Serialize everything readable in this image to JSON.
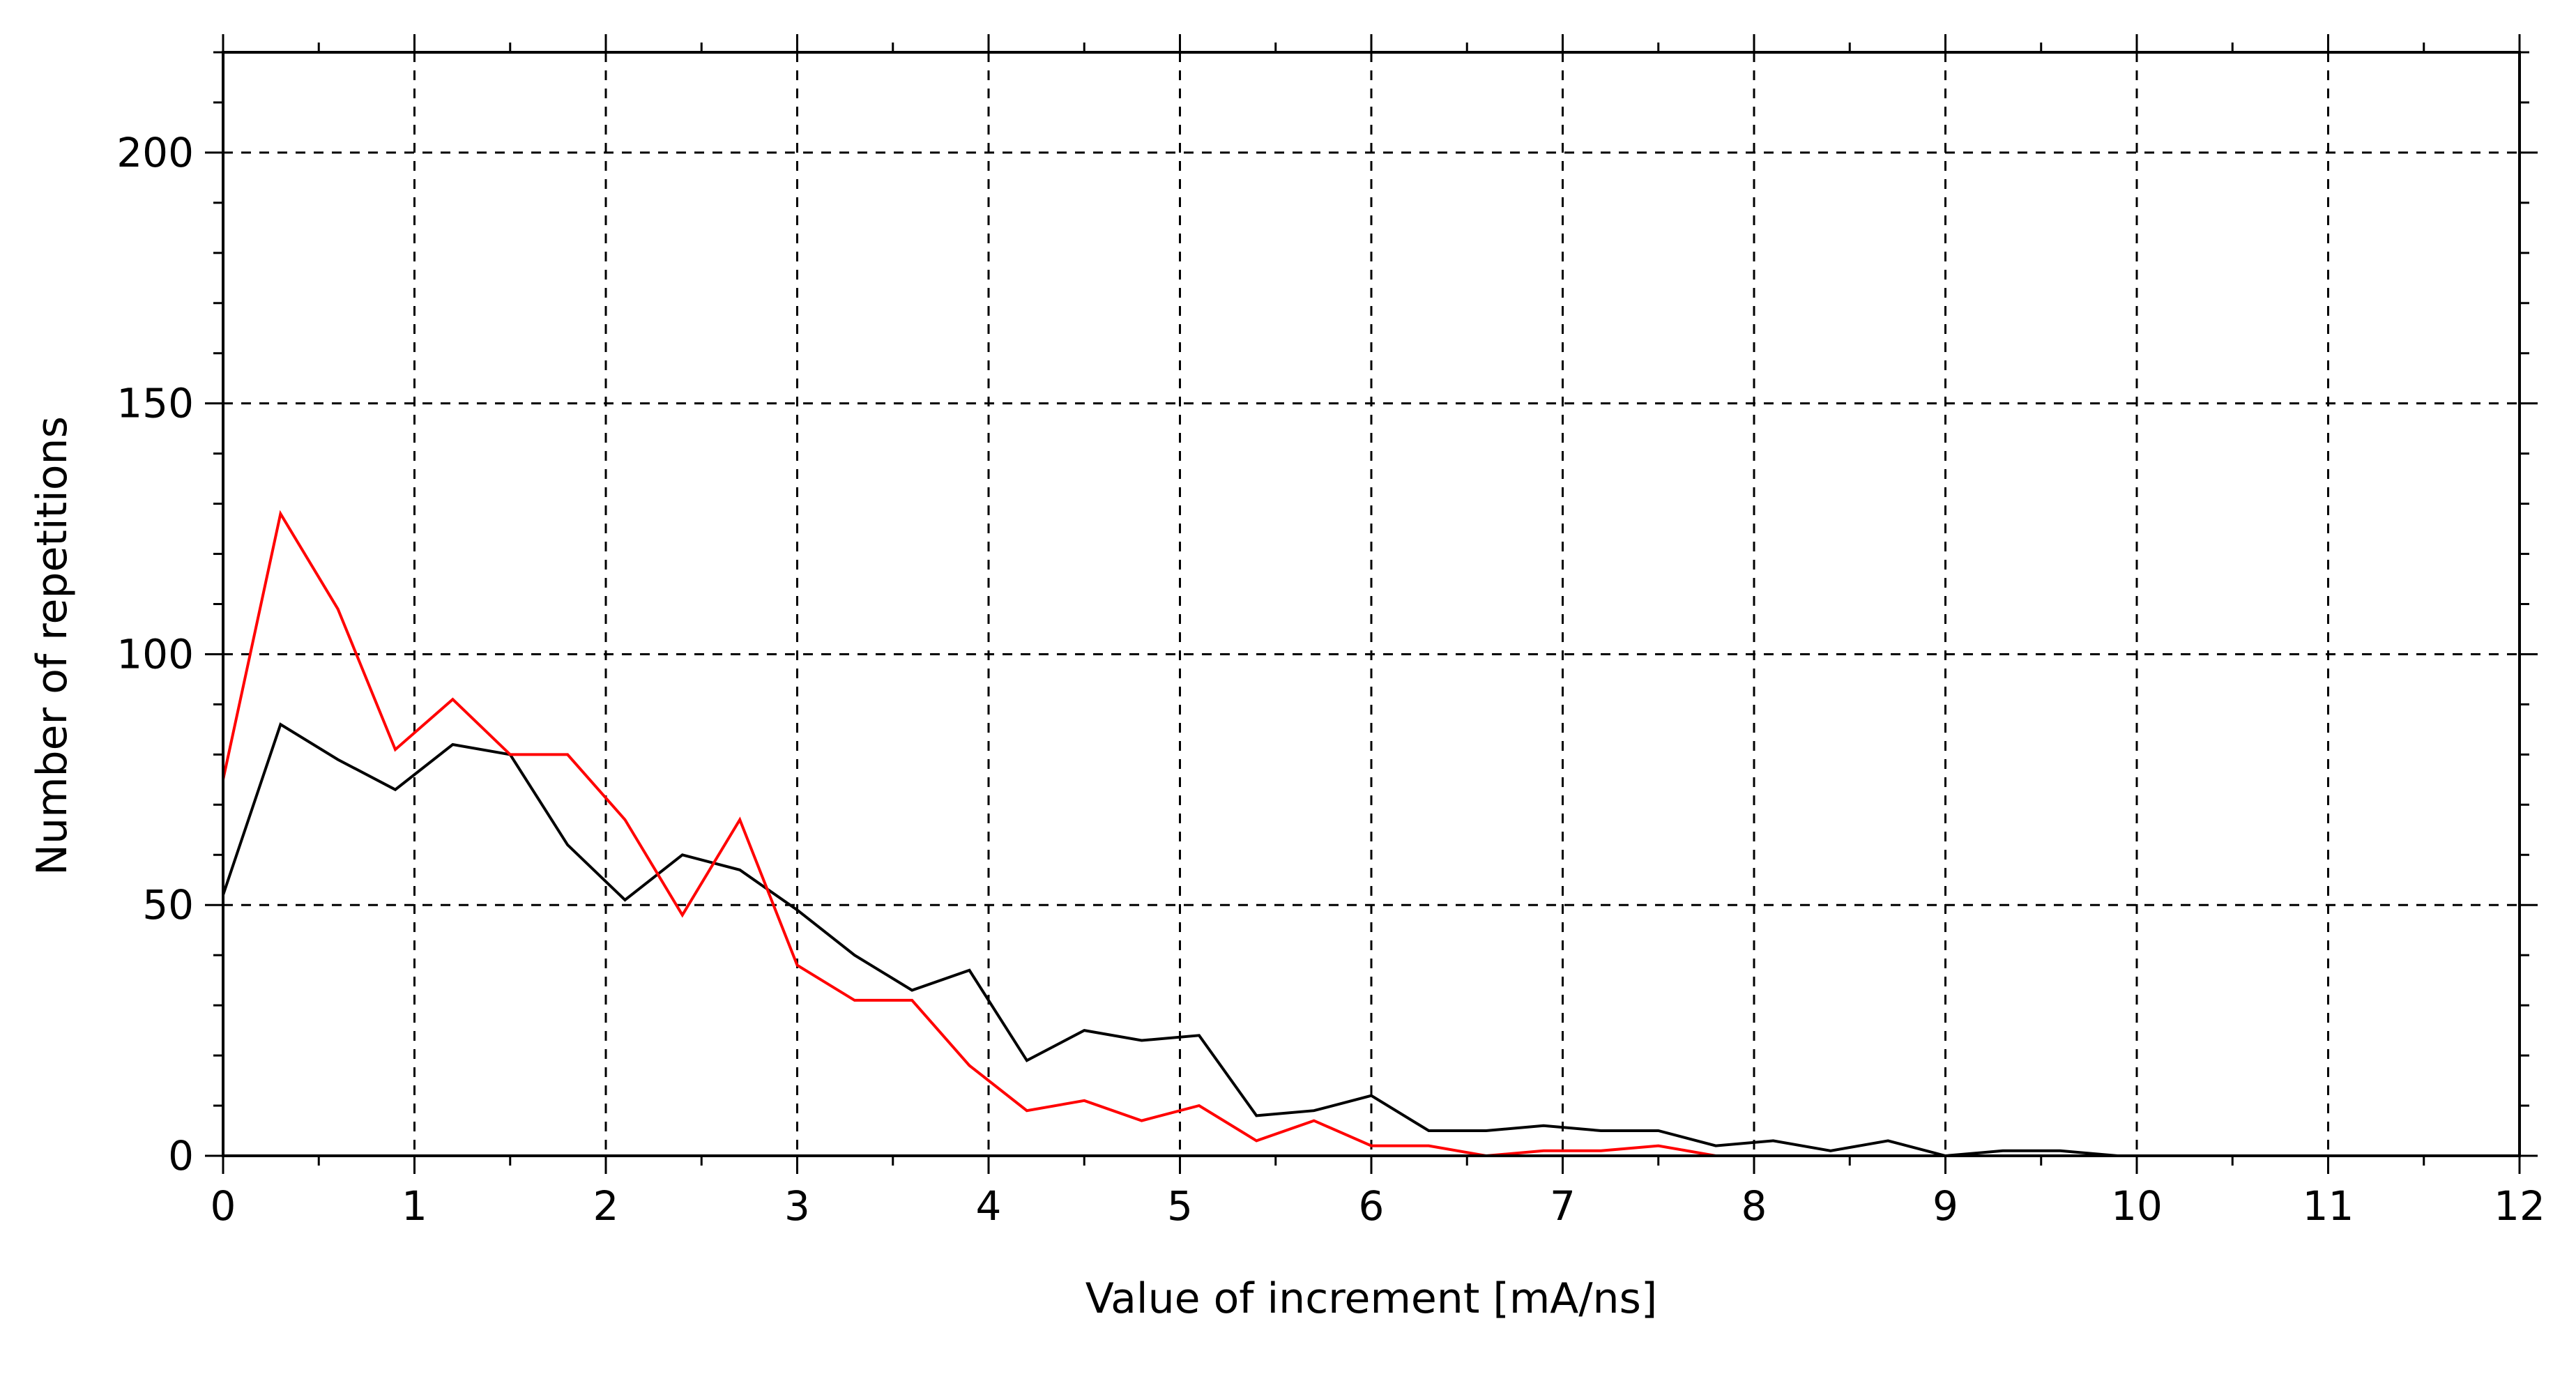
{
  "chart_data": {
    "type": "line",
    "title": "",
    "xlabel": "Value of increment [mA/ns]",
    "ylabel": "Number of repetitions",
    "xlim": [
      0,
      12
    ],
    "ylim": [
      0,
      220
    ],
    "x_ticks": [
      0,
      1,
      2,
      3,
      4,
      5,
      6,
      7,
      8,
      9,
      10,
      11,
      12
    ],
    "y_ticks": [
      0,
      50,
      100,
      150,
      200
    ],
    "grid": true,
    "grid_style": "dashed",
    "legend": "none",
    "series": [
      {
        "color": "#000000",
        "x": [
          0,
          0.3,
          0.6,
          0.9,
          1.2,
          1.5,
          1.8,
          2.1,
          2.4,
          2.7,
          3.0,
          3.3,
          3.6,
          3.9,
          4.2,
          4.5,
          4.8,
          5.1,
          5.4,
          5.7,
          6.0,
          6.3,
          6.6,
          6.9,
          7.2,
          7.5,
          7.8,
          8.1,
          8.4,
          8.7,
          9.0,
          9.3,
          9.6,
          9.9
        ],
        "values": [
          52,
          86,
          79,
          73,
          82,
          80,
          62,
          51,
          60,
          57,
          49,
          40,
          33,
          37,
          19,
          25,
          23,
          24,
          8,
          9,
          12,
          5,
          5,
          6,
          5,
          5,
          2,
          3,
          1,
          3,
          0,
          1,
          1,
          0
        ]
      },
      {
        "color": "#ff0000",
        "x": [
          0,
          0.3,
          0.6,
          0.9,
          1.2,
          1.5,
          1.8,
          2.1,
          2.4,
          2.7,
          3.0,
          3.3,
          3.6,
          3.9,
          4.2,
          4.5,
          4.8,
          5.1,
          5.4,
          5.7,
          6.0,
          6.3,
          6.6,
          6.9,
          7.2,
          7.5,
          7.8
        ],
        "values": [
          75,
          128,
          109,
          81,
          91,
          80,
          80,
          67,
          48,
          67,
          38,
          31,
          31,
          18,
          9,
          11,
          7,
          10,
          3,
          7,
          2,
          2,
          0,
          1,
          1,
          2,
          0
        ]
      }
    ]
  }
}
